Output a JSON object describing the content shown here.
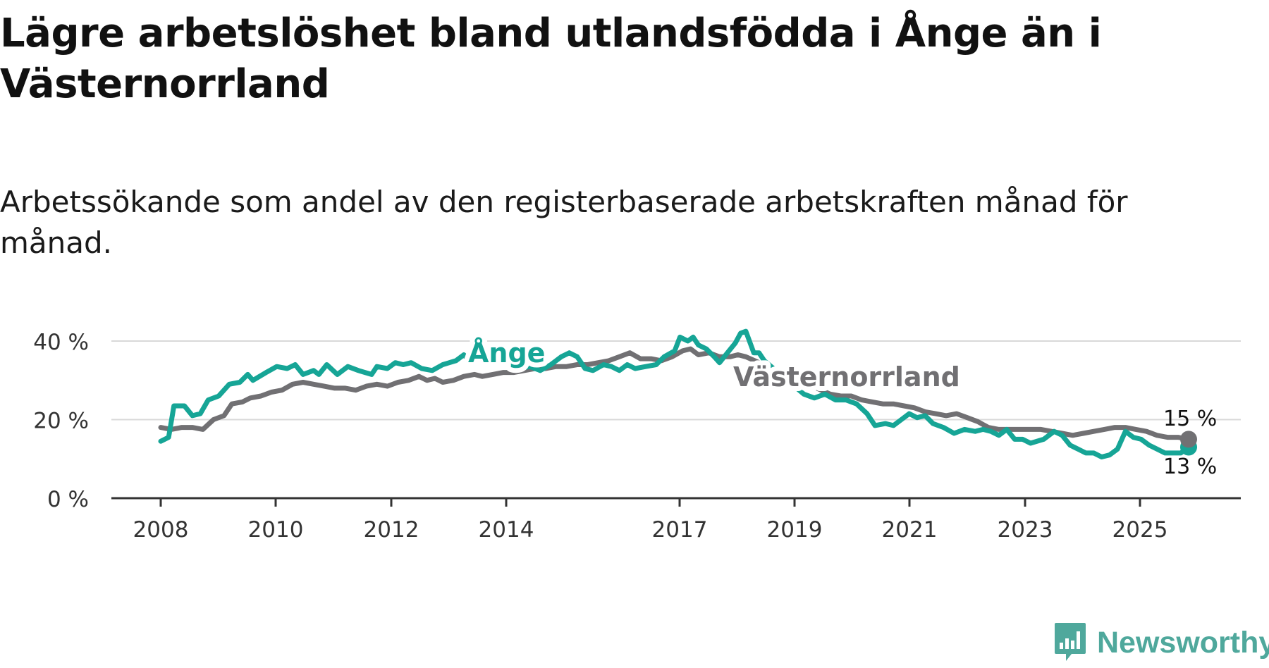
{
  "title": "Lägre arbetslöshet bland utlandsfödda i Ånge än i Västernorrland",
  "subtitle": "Arbetssökande som andel av den registerbaserade arbetskraften månad för månad.",
  "brand": {
    "name": "Newsworthy",
    "icon": "newsworthy-logo-icon",
    "color": "#4fa89c"
  },
  "colors": {
    "ange": "#16a596",
    "vasternorrland": "#717073",
    "grid": "#d9d9d9",
    "axis": "#333333"
  },
  "chart_data": {
    "type": "line",
    "title": "Lägre arbetslöshet bland utlandsfödda i Ånge än i Västernorrland",
    "xlabel": "",
    "ylabel": "",
    "xlim": [
      2008,
      2026.7
    ],
    "ylim": [
      0,
      40
    ],
    "y_ticks": [
      0,
      20,
      40
    ],
    "y_tick_labels": [
      "0 %",
      "20 %",
      "40 %"
    ],
    "x_ticks": [
      2008,
      2010,
      2012,
      2014,
      2017,
      2019,
      2021,
      2023,
      2025
    ],
    "x_tick_labels": [
      "2008",
      "2010",
      "2012",
      "2014",
      "2017",
      "2019",
      "2021",
      "2023",
      "2025"
    ],
    "grid": true,
    "series": [
      {
        "name": "Ånge",
        "label": "Ånge",
        "color": "#16a596",
        "end_label": "13 %",
        "points": [
          [
            2008.0,
            14.5
          ],
          [
            2008.15,
            15.5
          ],
          [
            2008.25,
            23.5
          ],
          [
            2008.45,
            23.5
          ],
          [
            2008.6,
            21
          ],
          [
            2008.75,
            21.5
          ],
          [
            2008.9,
            25
          ],
          [
            2009.1,
            26
          ],
          [
            2009.3,
            29
          ],
          [
            2009.5,
            29.5
          ],
          [
            2009.65,
            31.5
          ],
          [
            2009.75,
            30
          ],
          [
            2010.0,
            32
          ],
          [
            2010.2,
            33.5
          ],
          [
            2010.4,
            33
          ],
          [
            2010.55,
            34
          ],
          [
            2010.7,
            31.5
          ],
          [
            2010.9,
            32.5
          ],
          [
            2011.0,
            31.5
          ],
          [
            2011.15,
            34
          ],
          [
            2011.35,
            31.5
          ],
          [
            2011.55,
            33.5
          ],
          [
            2011.75,
            32.5
          ],
          [
            2012.0,
            31.5
          ],
          [
            2012.1,
            33.5
          ],
          [
            2012.3,
            33
          ],
          [
            2012.45,
            34.5
          ],
          [
            2012.6,
            34
          ],
          [
            2012.75,
            34.5
          ],
          [
            2012.95,
            33
          ],
          [
            2013.15,
            32.5
          ],
          [
            2013.35,
            34
          ],
          [
            2013.6,
            35
          ],
          [
            2013.75,
            36.5
          ],
          [
            2013.85,
            35
          ],
          [
            2014.0,
            35.5
          ],
          [
            2014.2,
            36
          ],
          [
            2014.35,
            34.5
          ],
          [
            2014.6,
            35
          ],
          [
            2014.8,
            33
          ],
          [
            2015.0,
            33.5
          ],
          [
            2015.2,
            32.5
          ],
          [
            2015.4,
            34
          ],
          [
            2015.6,
            36
          ],
          [
            2015.75,
            37
          ],
          [
            2015.9,
            36
          ],
          [
            2016.05,
            33
          ],
          [
            2016.2,
            32.5
          ],
          [
            2016.4,
            34
          ],
          [
            2016.55,
            33.5
          ],
          [
            2016.7,
            32.5
          ],
          [
            2016.85,
            34
          ],
          [
            2017.0,
            33
          ],
          [
            2017.2,
            33.5
          ],
          [
            2017.4,
            34
          ],
          [
            2017.55,
            36
          ],
          [
            2017.75,
            37.5
          ],
          [
            2017.85,
            41
          ],
          [
            2018.0,
            40
          ],
          [
            2018.1,
            41
          ],
          [
            2018.2,
            39
          ],
          [
            2018.35,
            38
          ],
          [
            2018.5,
            36
          ],
          [
            2018.6,
            34.5
          ],
          [
            2018.75,
            37
          ],
          [
            2018.9,
            39.5
          ],
          [
            2019.0,
            42
          ],
          [
            2019.1,
            42.5
          ],
          [
            2019.25,
            37
          ],
          [
            2019.35,
            37
          ],
          [
            2019.45,
            35
          ],
          [
            2020.2,
            26.5
          ],
          [
            2020.4,
            25.5
          ],
          [
            2020.6,
            26.5
          ],
          [
            2020.8,
            25
          ],
          [
            2021.0,
            25
          ],
          [
            2021.2,
            24
          ],
          [
            2021.4,
            21.5
          ],
          [
            2021.55,
            18.5
          ],
          [
            2021.75,
            19
          ],
          [
            2021.9,
            18.5
          ],
          [
            2022.05,
            20
          ],
          [
            2022.2,
            21.5
          ],
          [
            2022.35,
            20.5
          ],
          [
            2022.5,
            21
          ],
          [
            2022.65,
            19
          ],
          [
            2022.85,
            18
          ],
          [
            2023.05,
            16.5
          ],
          [
            2023.25,
            17.5
          ],
          [
            2023.45,
            17
          ],
          [
            2023.6,
            17.5
          ],
          [
            2023.75,
            17
          ],
          [
            2023.9,
            16
          ],
          [
            2024.05,
            17.5
          ],
          [
            2024.2,
            15
          ],
          [
            2024.35,
            15
          ],
          [
            2024.5,
            14
          ],
          [
            2024.75,
            15
          ],
          [
            2024.95,
            17
          ],
          [
            2025.1,
            16
          ],
          [
            2025.25,
            13.5
          ],
          [
            2025.4,
            12.5
          ],
          [
            2025.55,
            11.5
          ],
          [
            2025.7,
            11.5
          ],
          [
            2025.85,
            10.5
          ],
          [
            2026.0,
            11
          ],
          [
            2026.15,
            12.5
          ],
          [
            2026.3,
            17
          ],
          [
            2026.45,
            15.5
          ],
          [
            2026.6,
            15
          ],
          [
            2026.75,
            13.5
          ],
          [
            2026.9,
            12.5
          ],
          [
            2027.05,
            11.5
          ],
          [
            2027.2,
            11.5
          ],
          [
            2027.35,
            11.5
          ],
          [
            2027.5,
            13
          ]
        ]
      },
      {
        "name": "Västernorrland",
        "label": "Västernorrland",
        "color": "#717073",
        "end_label": "15 %",
        "points": [
          [
            2008.0,
            18
          ],
          [
            2008.2,
            17.5
          ],
          [
            2008.4,
            18
          ],
          [
            2008.6,
            18
          ],
          [
            2008.8,
            17.5
          ],
          [
            2009.0,
            20
          ],
          [
            2009.2,
            21
          ],
          [
            2009.35,
            24
          ],
          [
            2009.55,
            24.5
          ],
          [
            2009.7,
            25.5
          ],
          [
            2009.9,
            26
          ],
          [
            2010.1,
            27
          ],
          [
            2010.3,
            27.5
          ],
          [
            2010.5,
            29
          ],
          [
            2010.7,
            29.5
          ],
          [
            2010.9,
            29
          ],
          [
            2011.1,
            28.5
          ],
          [
            2011.3,
            28
          ],
          [
            2011.5,
            28
          ],
          [
            2011.7,
            27.5
          ],
          [
            2011.9,
            28.5
          ],
          [
            2012.1,
            29
          ],
          [
            2012.3,
            28.5
          ],
          [
            2012.5,
            29.5
          ],
          [
            2012.7,
            30
          ],
          [
            2012.9,
            31
          ],
          [
            2013.05,
            30
          ],
          [
            2013.2,
            30.5
          ],
          [
            2013.35,
            29.5
          ],
          [
            2013.55,
            30
          ],
          [
            2013.75,
            31
          ],
          [
            2013.95,
            31.5
          ],
          [
            2014.1,
            31
          ],
          [
            2014.3,
            31.5
          ],
          [
            2014.5,
            32
          ],
          [
            2014.7,
            32
          ],
          [
            2014.9,
            32.5
          ],
          [
            2015.1,
            33
          ],
          [
            2015.3,
            33
          ],
          [
            2015.5,
            33.5
          ],
          [
            2015.7,
            33.5
          ],
          [
            2015.9,
            34
          ],
          [
            2016.1,
            34
          ],
          [
            2016.3,
            34.5
          ],
          [
            2016.5,
            35
          ],
          [
            2016.7,
            36
          ],
          [
            2016.9,
            37
          ],
          [
            2017.1,
            35.5
          ],
          [
            2017.3,
            35.5
          ],
          [
            2017.5,
            35
          ],
          [
            2017.7,
            36
          ],
          [
            2017.9,
            37.5
          ],
          [
            2018.05,
            38
          ],
          [
            2018.2,
            36.5
          ],
          [
            2018.4,
            37
          ],
          [
            2018.6,
            36
          ],
          [
            2018.8,
            36
          ],
          [
            2018.95,
            36.5
          ],
          [
            2019.1,
            36
          ],
          [
            2020.7,
            26.5
          ],
          [
            2020.9,
            26
          ],
          [
            2021.1,
            26
          ],
          [
            2021.3,
            25
          ],
          [
            2021.5,
            24.5
          ],
          [
            2021.7,
            24
          ],
          [
            2021.9,
            24
          ],
          [
            2022.1,
            23.5
          ],
          [
            2022.3,
            23
          ],
          [
            2022.5,
            22
          ],
          [
            2022.7,
            21.5
          ],
          [
            2022.9,
            21
          ],
          [
            2023.1,
            21.5
          ],
          [
            2023.3,
            20.5
          ],
          [
            2023.5,
            19.5
          ],
          [
            2023.7,
            18
          ],
          [
            2023.9,
            17.5
          ],
          [
            2024.1,
            17.5
          ],
          [
            2024.3,
            17.5
          ],
          [
            2024.5,
            17.5
          ],
          [
            2024.7,
            17.5
          ],
          [
            2024.9,
            17
          ],
          [
            2025.1,
            16.5
          ],
          [
            2025.3,
            16
          ],
          [
            2025.5,
            16.5
          ],
          [
            2025.7,
            17
          ],
          [
            2025.9,
            17.5
          ],
          [
            2026.1,
            18
          ],
          [
            2026.3,
            18
          ],
          [
            2026.5,
            17.5
          ],
          [
            2026.7,
            17
          ],
          [
            2026.9,
            16
          ],
          [
            2027.1,
            15.5
          ],
          [
            2027.3,
            15.5
          ],
          [
            2027.5,
            15
          ]
        ]
      }
    ]
  }
}
